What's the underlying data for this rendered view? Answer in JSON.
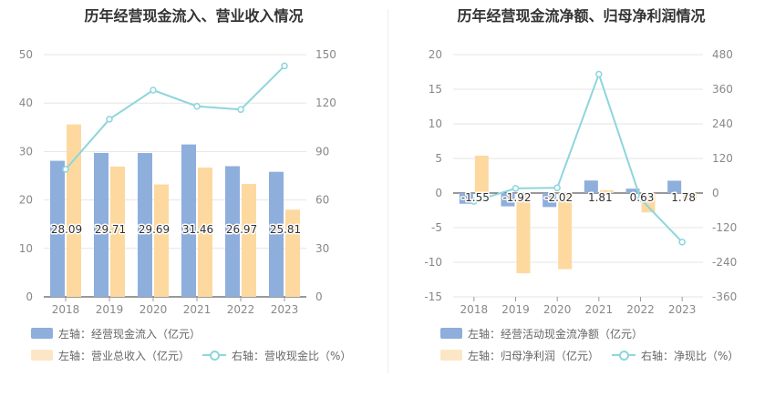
{
  "chart_data": [
    {
      "type": "bar+line",
      "title": "历年经营现金流入、营业收入情况",
      "categories": [
        "2018",
        "2019",
        "2020",
        "2021",
        "2022",
        "2023"
      ],
      "y_left": {
        "min": 0,
        "max": 50,
        "ticks": [
          "0",
          "10",
          "20",
          "30",
          "40",
          "50"
        ]
      },
      "y_right": {
        "min": 0,
        "max": 150,
        "ticks": [
          "0",
          "30",
          "60",
          "90",
          "120",
          "150"
        ]
      },
      "series": [
        {
          "name": "左轴：经营现金流入（亿元）",
          "type": "bar",
          "axis": "left",
          "color": "#8eaedc",
          "values": [
            28.09,
            29.71,
            29.69,
            31.46,
            26.97,
            25.81
          ],
          "labels": [
            "28.09",
            "29.71",
            "29.69",
            "31.46",
            "26.97",
            "25.81"
          ]
        },
        {
          "name": "左轴：营业总收入（亿元）",
          "type": "bar",
          "axis": "left",
          "color": "#fdd9a0",
          "values": [
            35.6,
            26.9,
            23.2,
            26.7,
            23.3,
            18.0
          ]
        },
        {
          "name": "右轴：营收现金比（%）",
          "type": "line",
          "axis": "right",
          "color": "#8dd6dc",
          "values": [
            79,
            110,
            128,
            118,
            116,
            143
          ]
        }
      ]
    },
    {
      "type": "bar+line",
      "title": "历年经营现金流净额、归母净利润情况",
      "categories": [
        "2018",
        "2019",
        "2020",
        "2021",
        "2022",
        "2023"
      ],
      "y_left": {
        "min": -15,
        "max": 20,
        "ticks": [
          "-15",
          "-10",
          "-5",
          "0",
          "5",
          "10",
          "15",
          "20"
        ]
      },
      "y_right": {
        "min": -360,
        "max": 480,
        "ticks": [
          "-360",
          "-240",
          "-120",
          "0",
          "120",
          "240",
          "360",
          "480"
        ]
      },
      "series": [
        {
          "name": "左轴：经营活动现金流净额（亿元）",
          "type": "bar",
          "axis": "left",
          "color": "#8eaedc",
          "values": [
            -1.55,
            -1.92,
            -2.02,
            1.81,
            0.63,
            1.78
          ],
          "labels": [
            "-1.55",
            "-1.92",
            "-2.02",
            "1.81",
            "0.63",
            "1.78"
          ]
        },
        {
          "name": "左轴：归母净利润（亿元）",
          "type": "bar",
          "axis": "left",
          "color": "#fdd9a0",
          "values": [
            5.4,
            -11.6,
            -11.0,
            0.4,
            -2.8,
            -1.0
          ]
        },
        {
          "name": "右轴：净现比（%）",
          "type": "line",
          "axis": "right",
          "color": "#8dd6dc",
          "values": [
            -29,
            16,
            18,
            412,
            -20,
            -170
          ]
        }
      ]
    }
  ]
}
